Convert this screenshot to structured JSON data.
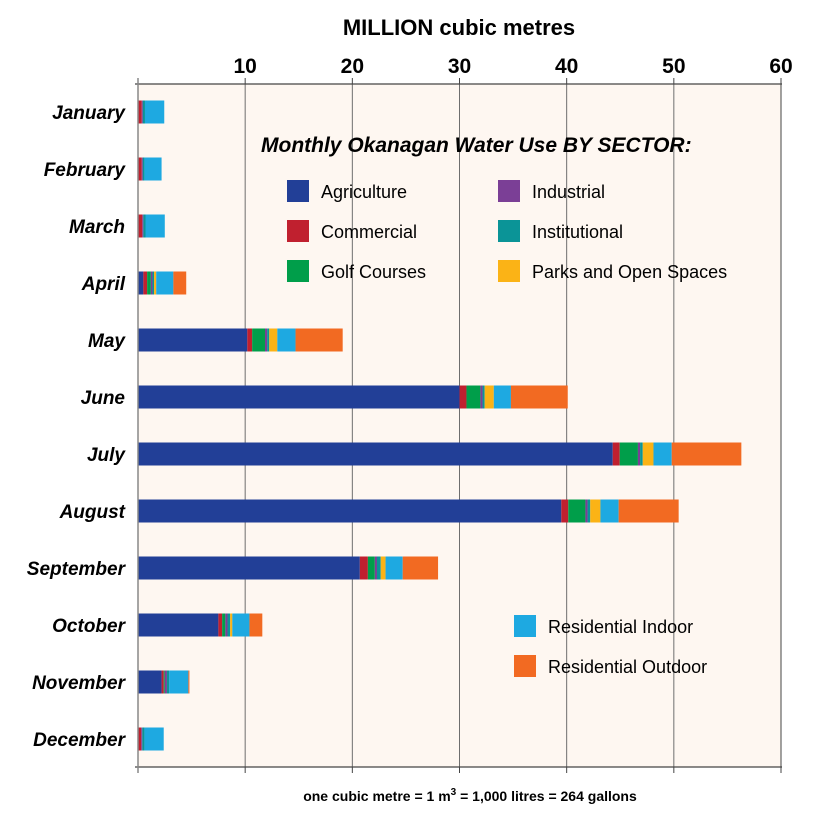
{
  "chart_data": {
    "type": "bar",
    "orientation": "horizontal",
    "stacked": true,
    "title": "Monthly Okanagan Water Use BY SECTOR:",
    "xlabel": "MILLION cubic metres",
    "ylabel": "",
    "xlim": [
      0,
      60
    ],
    "xticks": [
      10,
      20,
      30,
      40,
      50,
      60
    ],
    "grid": true,
    "footnote": {
      "before": "one cubic metre = 1 m",
      "sup": "3",
      "after": " = 1,000 litres = 264 gallons"
    },
    "categories": [
      "January",
      "February",
      "March",
      "April",
      "May",
      "June",
      "July",
      "August",
      "September",
      "October",
      "November",
      "December"
    ],
    "series": [
      {
        "name": "Agriculture",
        "color": "#223f97",
        "values": [
          0,
          0,
          0,
          0.5,
          10.2,
          30.0,
          44.3,
          39.5,
          20.7,
          7.5,
          2.2,
          0
        ]
      },
      {
        "name": "Commercial",
        "color": "#c0202f",
        "values": [
          0.35,
          0.35,
          0.4,
          0.35,
          0.45,
          0.65,
          0.65,
          0.65,
          0.75,
          0.35,
          0.2,
          0.3
        ]
      },
      {
        "name": "Golf Courses",
        "color": "#009e4a",
        "values": [
          0,
          0,
          0,
          0.35,
          1.2,
          1.3,
          1.7,
          1.6,
          0.65,
          0.3,
          0.1,
          0
        ]
      },
      {
        "name": "Industrial",
        "color": "#7b3f96",
        "values": [
          0.1,
          0.1,
          0.1,
          0.15,
          0.2,
          0.2,
          0.2,
          0.2,
          0.2,
          0.2,
          0.2,
          0.1
        ]
      },
      {
        "name": "Institutional",
        "color": "#0b9497",
        "values": [
          0.2,
          0.15,
          0.2,
          0.15,
          0.2,
          0.2,
          0.25,
          0.25,
          0.35,
          0.25,
          0.2,
          0.2
        ]
      },
      {
        "name": "Parks and Open Spaces",
        "color": "#fbb316",
        "values": [
          0,
          0,
          0,
          0.2,
          0.75,
          0.85,
          1.0,
          0.95,
          0.45,
          0.2,
          0,
          0
        ]
      },
      {
        "name": "Residential Indoor",
        "color": "#1ea9e1",
        "values": [
          1.8,
          1.6,
          1.8,
          1.6,
          1.7,
          1.6,
          1.7,
          1.7,
          1.6,
          1.6,
          1.8,
          1.8
        ]
      },
      {
        "name": "Residential Outdoor",
        "color": "#f26a22",
        "values": [
          0,
          0,
          0,
          1.2,
          4.4,
          5.3,
          6.5,
          5.6,
          3.3,
          1.2,
          0.1,
          0
        ]
      }
    ],
    "legend": {
      "upper": [
        "Agriculture",
        "Industrial",
        "Commercial",
        "Institutional",
        "Golf Courses",
        "Parks and Open Spaces"
      ],
      "lower": [
        "Residential Indoor",
        "Residential Outdoor"
      ],
      "placement": "inside-right"
    },
    "plot_background": "#fef7f1"
  }
}
